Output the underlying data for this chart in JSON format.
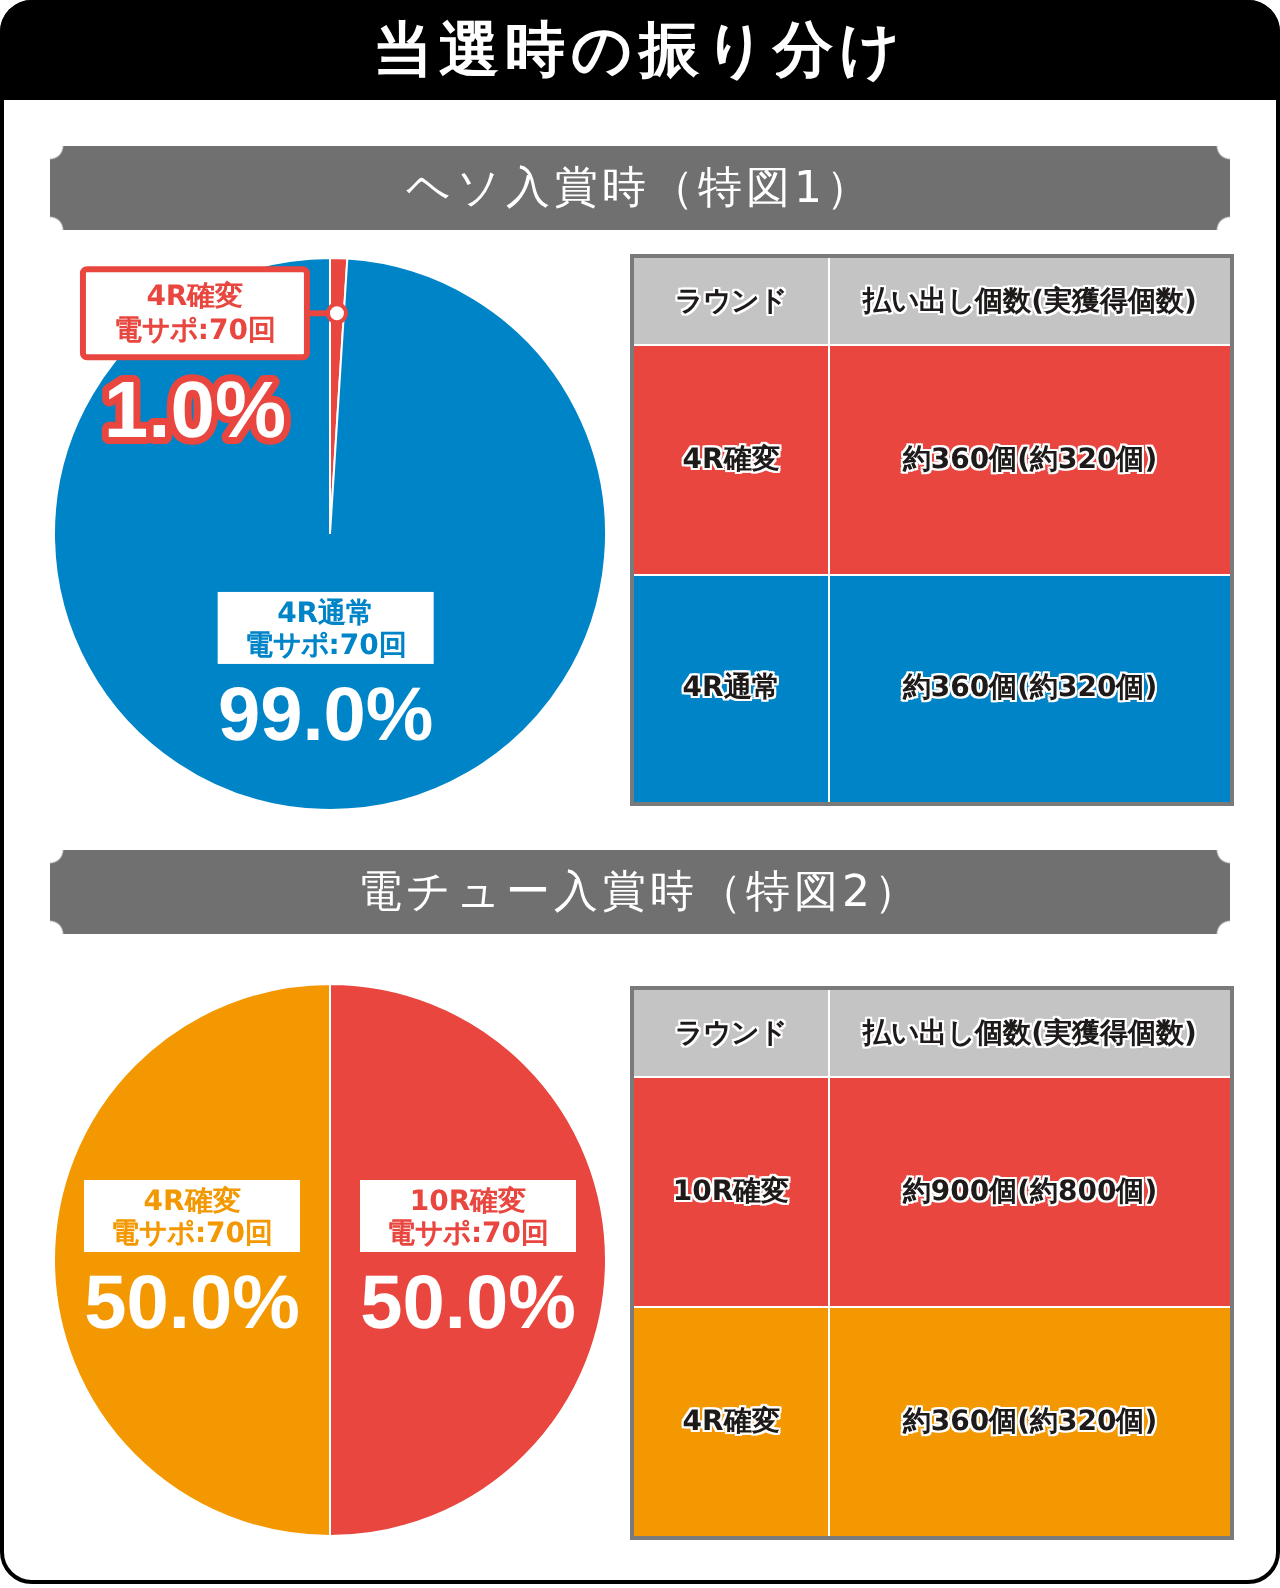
{
  "chart_data": [
    {
      "type": "pie",
      "title": "当選時の振り分け",
      "subtitle": "ヘソ入賞時（特図1）",
      "categories": [
        "4R確変電サポ:70回",
        "4R通常電サポ:70回"
      ],
      "values": [
        1.0,
        99.0
      ],
      "colors": [
        "#e8463f",
        "#0084c8"
      ],
      "value_labels": [
        "1.0%",
        "99.0%"
      ]
    },
    {
      "type": "other",
      "annotations": [
        "ラウンド",
        "払い出し個数(実獲得個数)",
        "4R確変",
        "約360個(約320個)",
        "4R通常",
        "約360個(約320個)"
      ],
      "colors": [
        "#c4c4c4",
        "#e8463f",
        "#0084c8"
      ]
    },
    {
      "type": "pie",
      "subtitle": "電チュー入賞時（特図2）",
      "categories": [
        "10R確変電サポ:70回",
        "4R確変電サポ:70回"
      ],
      "values": [
        50.0,
        50.0
      ],
      "colors": [
        "#e8463f",
        "#f39800"
      ],
      "value_labels": [
        "50.0%",
        "50.0%"
      ]
    },
    {
      "type": "other",
      "annotations": [
        "ラウンド",
        "払い出し個数(実獲得個数)",
        "10R確変",
        "約900個(約800個)",
        "4R確変",
        "約360個(約320個)"
      ],
      "colors": [
        "#c4c4c4",
        "#e8463f",
        "#f39800"
      ]
    }
  ]
}
